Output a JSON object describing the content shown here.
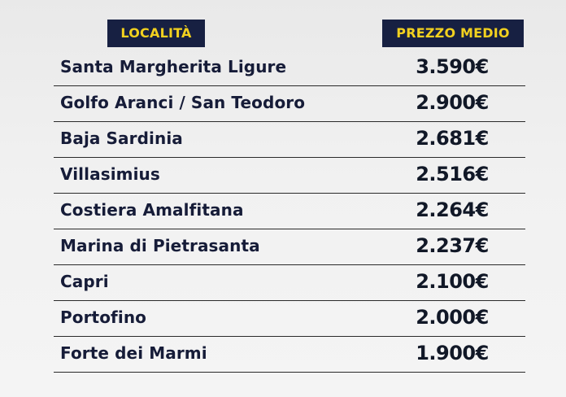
{
  "header": {
    "location_label": "LOCALITÀ",
    "price_label": "PREZZO MEDIO"
  },
  "rows": [
    {
      "location": "Santa Margherita Ligure",
      "price": "3.590€"
    },
    {
      "location": "Golfo Aranci / San Teodoro",
      "price": "2.900€"
    },
    {
      "location": "Baja Sardinia",
      "price": "2.681€"
    },
    {
      "location": "Villasimius",
      "price": "2.516€"
    },
    {
      "location": "Costiera Amalfitana",
      "price": "2.264€"
    },
    {
      "location": "Marina di Pietrasanta",
      "price": "2.237€"
    },
    {
      "location": "Capri",
      "price": "2.100€"
    },
    {
      "location": "Portofino",
      "price": "2.000€"
    },
    {
      "location": "Forte dei Marmi",
      "price": "1.900€"
    }
  ],
  "colors": {
    "header_bg": "#172042",
    "header_text": "#f2d11f",
    "body_text": "#161c38",
    "divider": "#2a2a2a"
  }
}
